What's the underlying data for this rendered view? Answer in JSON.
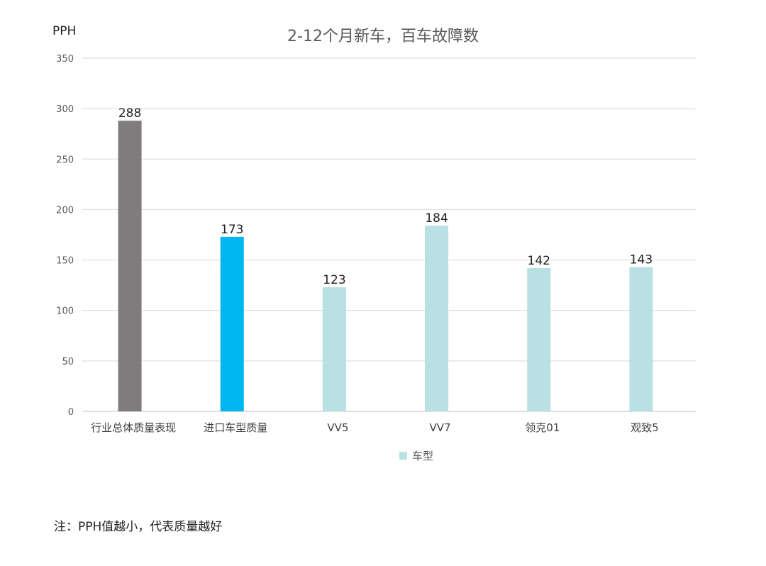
{
  "chart_data": {
    "type": "bar",
    "title": "2-12个月新车，百车故障数",
    "ylabel": "PPH",
    "xlabel": "",
    "categories": [
      "行业总体质量表现",
      "进口车型质量",
      "VV5",
      "VV7",
      "领克01",
      "观致5"
    ],
    "values": [
      288,
      173,
      123,
      184,
      142,
      143
    ],
    "bar_colors": [
      "#807c7d",
      "#00b6ef",
      "#b9e0e3",
      "#b9e0e3",
      "#b9e0e3",
      "#b9e0e3"
    ],
    "ylim": [
      0,
      350
    ],
    "yticks": [
      0,
      50,
      100,
      150,
      200,
      250,
      300,
      350
    ],
    "grid": true,
    "legend": {
      "label": "车型",
      "color": "#b9e0e3",
      "position": "bottom"
    }
  },
  "note": "注：PPH值越小，代表质量越好"
}
